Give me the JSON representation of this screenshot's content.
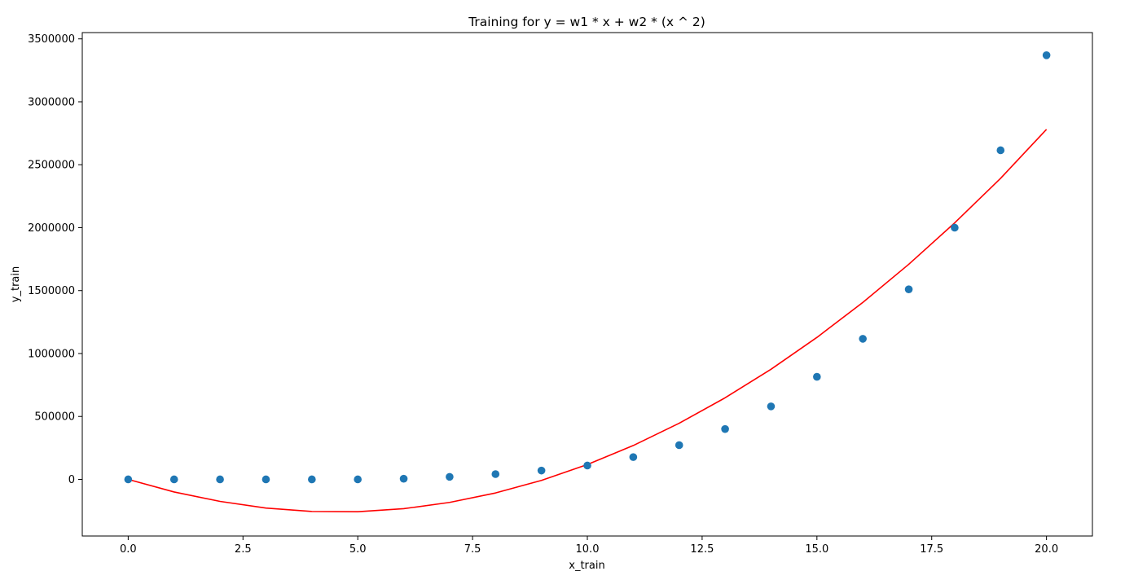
{
  "chart_data": {
    "type": "scatter",
    "title": "Training for y = w1 * x + w2 * (x ^ 2)",
    "xlabel": "x_train",
    "ylabel": "y_train",
    "xlim": [
      -1.0,
      21.0
    ],
    "ylim": [
      -450000,
      3550000
    ],
    "x_ticks": [
      0.0,
      2.5,
      5.0,
      7.5,
      10.0,
      12.5,
      15.0,
      17.5,
      20.0
    ],
    "x_tick_labels": [
      "0.0",
      "2.5",
      "5.0",
      "7.5",
      "10.0",
      "12.5",
      "15.0",
      "17.5",
      "20.0"
    ],
    "y_ticks": [
      0,
      500000,
      1000000,
      1500000,
      2000000,
      2500000,
      3000000,
      3500000
    ],
    "y_tick_labels": [
      "0",
      "500000",
      "1000000",
      "1500000",
      "2000000",
      "2500000",
      "3000000",
      "3500000"
    ],
    "grid": false,
    "colors": {
      "scatter": "#1f77b4",
      "line": "#ff0000"
    },
    "series": [
      {
        "kind": "scatter",
        "x": [
          0,
          1,
          2,
          3,
          4,
          5,
          6,
          7,
          8,
          9,
          10,
          11,
          12,
          13,
          14,
          15,
          16,
          17,
          18,
          19,
          20
        ],
        "values": [
          0,
          0,
          0,
          0,
          0,
          0,
          5000,
          20000,
          42000,
          70000,
          110000,
          177000,
          272000,
          400000,
          580000,
          815000,
          1117000,
          1510000,
          2000000,
          2615000,
          3370000
        ]
      },
      {
        "kind": "line",
        "x": [
          0,
          1,
          2,
          3,
          4,
          5,
          6,
          7,
          8,
          9,
          10,
          11,
          12,
          13,
          14,
          15,
          16,
          17,
          18,
          19,
          20
        ],
        "values": [
          0,
          -100000,
          -175000,
          -228000,
          -255000,
          -257000,
          -233000,
          -183000,
          -108000,
          -8000,
          118000,
          269000,
          446000,
          648000,
          875000,
          1128000,
          1406000,
          1709000,
          2038000,
          2392000,
          2781000
        ]
      }
    ]
  }
}
